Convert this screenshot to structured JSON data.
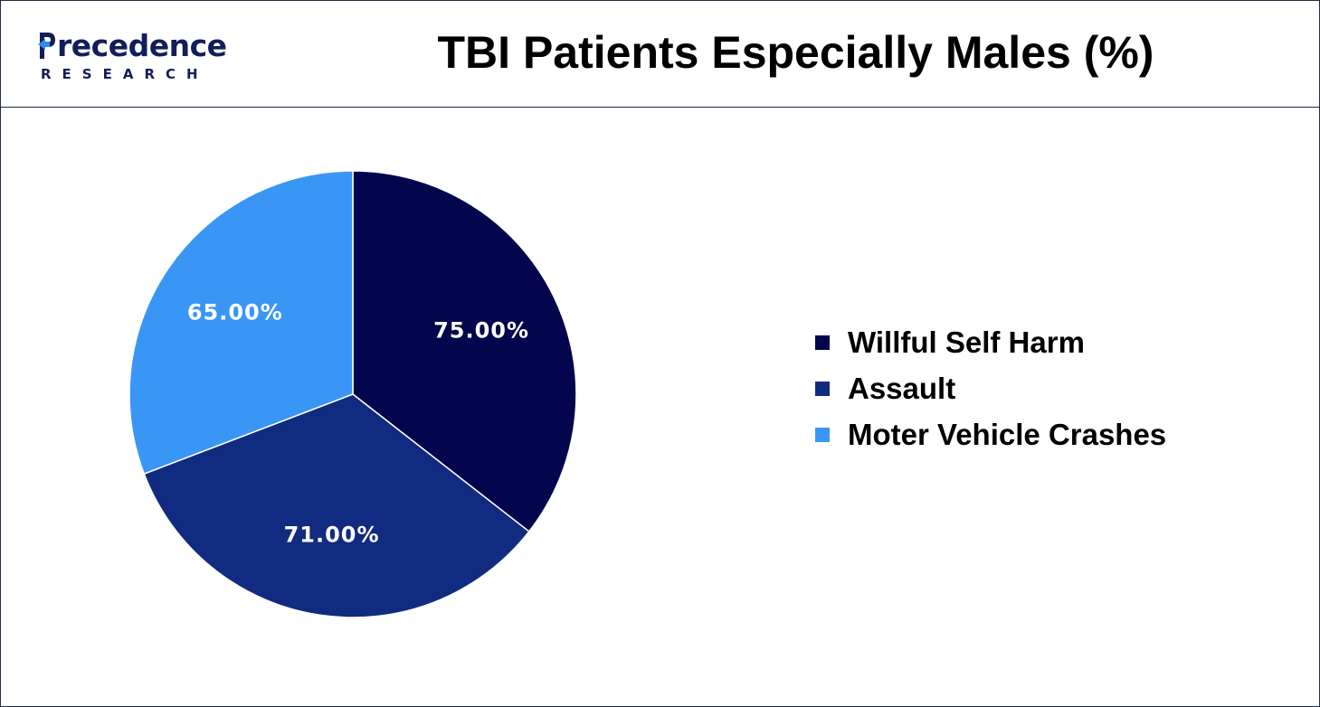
{
  "header": {
    "logo_top": "recedence",
    "logo_bottom": "RESEARCH",
    "logo_color": "#121d5c",
    "logo_accent": "#2f8cf0"
  },
  "chart_data": {
    "type": "pie",
    "title": "TBI Patients Especially Males (%)",
    "slices": [
      {
        "label": "Willful Self Harm",
        "value": 75.0,
        "display": "75.00%",
        "color": "#03064c"
      },
      {
        "label": "Assault",
        "value": 71.0,
        "display": "71.00%",
        "color": "#102b7f"
      },
      {
        "label": "Moter Vehicle Crashes",
        "value": 65.0,
        "display": "65.00%",
        "color": "#3a96f5"
      }
    ],
    "legend_position": "right",
    "start": "12 o'clock",
    "direction": "clockwise",
    "label_color": "#ffffff"
  }
}
